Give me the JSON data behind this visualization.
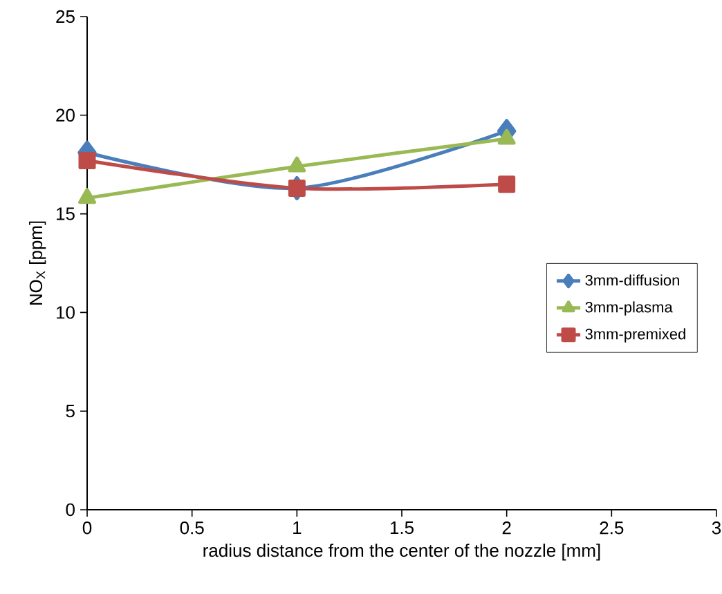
{
  "chart_data": {
    "type": "line",
    "xlabel": "radius distance from the center of the nozzle [mm]",
    "ylabel": "NO$_{X}$ [ppm]",
    "x": [
      0,
      1,
      2
    ],
    "series": [
      {
        "name": "3mm-diffusion",
        "color": "#4a7ebb",
        "values": [
          18.1,
          16.3,
          19.2
        ],
        "marker": "diamond"
      },
      {
        "name": "3mm-plasma",
        "color": "#98b954",
        "values": [
          15.8,
          17.4,
          18.8
        ],
        "marker": "triangle"
      },
      {
        "name": "3mm-premixed",
        "color": "#be4b48",
        "values": [
          17.7,
          16.3,
          16.5
        ],
        "marker": "square"
      }
    ],
    "xlim": [
      0,
      3
    ],
    "ylim": [
      0,
      25
    ],
    "xticks": [
      0,
      0.5,
      1,
      1.5,
      2,
      2.5,
      3
    ],
    "yticks": [
      0,
      5,
      10,
      15,
      20,
      25
    ],
    "legend": "right",
    "grid": false
  }
}
